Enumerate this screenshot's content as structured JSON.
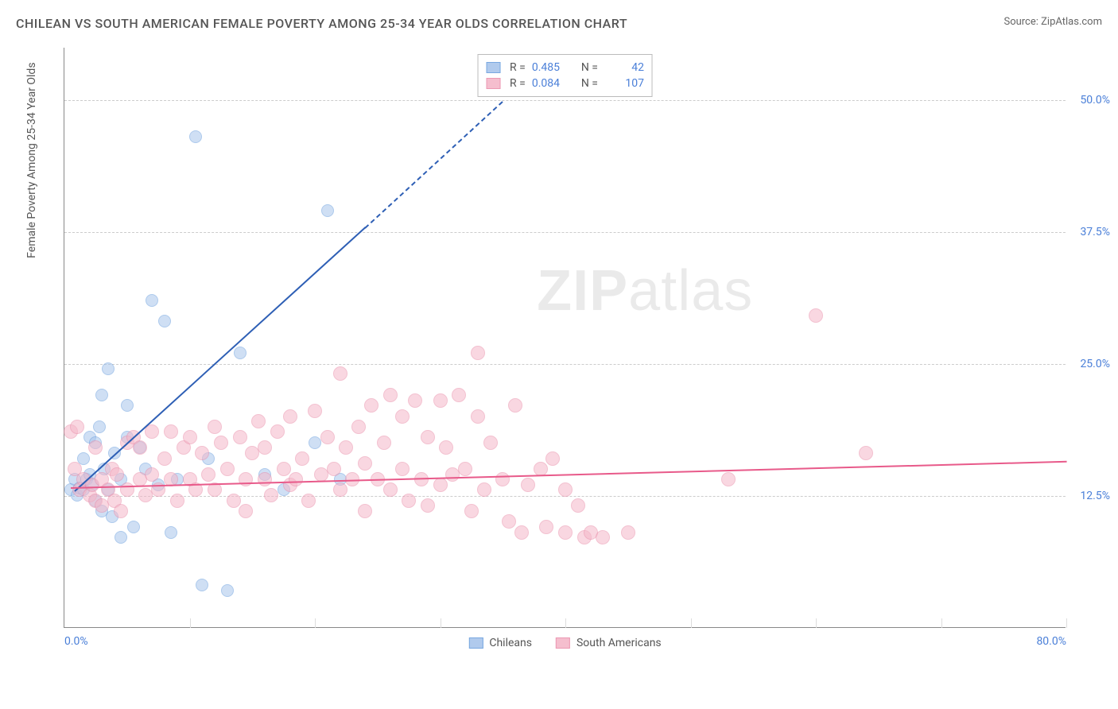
{
  "header": {
    "title": "CHILEAN VS SOUTH AMERICAN FEMALE POVERTY AMONG 25-34 YEAR OLDS CORRELATION CHART",
    "source": "Source: ZipAtlas.com"
  },
  "chart": {
    "type": "scatter",
    "ylabel": "Female Poverty Among 25-34 Year Olds",
    "watermark": "ZIPatlas",
    "xlim": [
      0,
      80
    ],
    "ylim": [
      0,
      55
    ],
    "xticks": [
      0,
      10,
      20,
      30,
      40,
      50,
      60,
      70,
      80
    ],
    "xtick_labels": {
      "0": "0.0%",
      "80": "80.0%"
    },
    "yticks": [
      12.5,
      25.0,
      37.5,
      50.0
    ],
    "ytick_labels": [
      "12.5%",
      "25.0%",
      "37.5%",
      "50.0%"
    ],
    "grid_color": "#cccccc",
    "axis_color": "#888888",
    "tick_label_color": "#4a7fd8",
    "background_color": "#ffffff",
    "series": [
      {
        "name": "Chileans",
        "fill_color": "#a8c5ec",
        "stroke_color": "#6b9fde",
        "line_color": "#2e5fb5",
        "fill_opacity": 0.55,
        "marker_radius": 8,
        "R": "0.485",
        "N": "42",
        "trend": {
          "x1": 0.8,
          "y1": 13.0,
          "x2": 24,
          "y2": 38.0,
          "dashed_x2": 35,
          "dashed_y2": 50
        },
        "points": [
          [
            0.5,
            13
          ],
          [
            0.8,
            14
          ],
          [
            1,
            12.5
          ],
          [
            1.2,
            13.2
          ],
          [
            1.5,
            13
          ],
          [
            1.5,
            16
          ],
          [
            1.8,
            14
          ],
          [
            2,
            14.5
          ],
          [
            2,
            18
          ],
          [
            2.2,
            13.5
          ],
          [
            2.5,
            12
          ],
          [
            2.5,
            17.5
          ],
          [
            2.8,
            19
          ],
          [
            3,
            22
          ],
          [
            3,
            11
          ],
          [
            3.2,
            15
          ],
          [
            3.5,
            24.5
          ],
          [
            3.5,
            13
          ],
          [
            3.8,
            10.5
          ],
          [
            4,
            16.5
          ],
          [
            4.5,
            14
          ],
          [
            4.5,
            8.5
          ],
          [
            5,
            21
          ],
          [
            5,
            18
          ],
          [
            5.5,
            9.5
          ],
          [
            6,
            17
          ],
          [
            6.5,
            15
          ],
          [
            7,
            31
          ],
          [
            7.5,
            13.5
          ],
          [
            8,
            29
          ],
          [
            8.5,
            9
          ],
          [
            9,
            14
          ],
          [
            10.5,
            46.5
          ],
          [
            11,
            4
          ],
          [
            11.5,
            16
          ],
          [
            13,
            3.5
          ],
          [
            14,
            26
          ],
          [
            16,
            14.5
          ],
          [
            17.5,
            13
          ],
          [
            20,
            17.5
          ],
          [
            21,
            39.5
          ],
          [
            22,
            14
          ]
        ]
      },
      {
        "name": "South Americans",
        "fill_color": "#f5b8c9",
        "stroke_color": "#ea8fab",
        "line_color": "#e85a8a",
        "fill_opacity": 0.55,
        "marker_radius": 9,
        "R": "0.084",
        "N": "107",
        "trend": {
          "x1": 0.5,
          "y1": 13.3,
          "x2": 80,
          "y2": 15.8
        },
        "points": [
          [
            0.5,
            18.5
          ],
          [
            0.8,
            15
          ],
          [
            1,
            19
          ],
          [
            1.2,
            13
          ],
          [
            1.5,
            14
          ],
          [
            2,
            12.5
          ],
          [
            2.2,
            13.5
          ],
          [
            2.5,
            12
          ],
          [
            2.5,
            17
          ],
          [
            3,
            14
          ],
          [
            3,
            11.5
          ],
          [
            3.5,
            13
          ],
          [
            3.8,
            15
          ],
          [
            4,
            12
          ],
          [
            4.2,
            14.5
          ],
          [
            4.5,
            11
          ],
          [
            5,
            17.5
          ],
          [
            5,
            13
          ],
          [
            5.5,
            18
          ],
          [
            6,
            17
          ],
          [
            6,
            14
          ],
          [
            6.5,
            12.5
          ],
          [
            7,
            18.5
          ],
          [
            7,
            14.5
          ],
          [
            7.5,
            13
          ],
          [
            8,
            16
          ],
          [
            8.5,
            18.5
          ],
          [
            8.5,
            14
          ],
          [
            9,
            12
          ],
          [
            9.5,
            17
          ],
          [
            10,
            14
          ],
          [
            10,
            18
          ],
          [
            10.5,
            13
          ],
          [
            11,
            16.5
          ],
          [
            11.5,
            14.5
          ],
          [
            12,
            19
          ],
          [
            12,
            13
          ],
          [
            12.5,
            17.5
          ],
          [
            13,
            15
          ],
          [
            13.5,
            12
          ],
          [
            14,
            18
          ],
          [
            14.5,
            14
          ],
          [
            14.5,
            11
          ],
          [
            15,
            16.5
          ],
          [
            15.5,
            19.5
          ],
          [
            16,
            14
          ],
          [
            16,
            17
          ],
          [
            16.5,
            12.5
          ],
          [
            17,
            18.5
          ],
          [
            17.5,
            15
          ],
          [
            18,
            13.5
          ],
          [
            18,
            20
          ],
          [
            18.5,
            14
          ],
          [
            19,
            16
          ],
          [
            19.5,
            12
          ],
          [
            20,
            20.5
          ],
          [
            20.5,
            14.5
          ],
          [
            21,
            18
          ],
          [
            21.5,
            15
          ],
          [
            22,
            13
          ],
          [
            22,
            24
          ],
          [
            22.5,
            17
          ],
          [
            23,
            14
          ],
          [
            23.5,
            19
          ],
          [
            24,
            15.5
          ],
          [
            24,
            11
          ],
          [
            24.5,
            21
          ],
          [
            25,
            14
          ],
          [
            25.5,
            17.5
          ],
          [
            26,
            13
          ],
          [
            26,
            22
          ],
          [
            27,
            20
          ],
          [
            27,
            15
          ],
          [
            27.5,
            12
          ],
          [
            28,
            21.5
          ],
          [
            28.5,
            14
          ],
          [
            29,
            18
          ],
          [
            29,
            11.5
          ],
          [
            30,
            21.5
          ],
          [
            30,
            13.5
          ],
          [
            30.5,
            17
          ],
          [
            31,
            14.5
          ],
          [
            31.5,
            22
          ],
          [
            32,
            15
          ],
          [
            32.5,
            11
          ],
          [
            33,
            20
          ],
          [
            33,
            26
          ],
          [
            33.5,
            13
          ],
          [
            34,
            17.5
          ],
          [
            35,
            14
          ],
          [
            35.5,
            10
          ],
          [
            36,
            21
          ],
          [
            36.5,
            9
          ],
          [
            37,
            13.5
          ],
          [
            38,
            15
          ],
          [
            38.5,
            9.5
          ],
          [
            39,
            16
          ],
          [
            40,
            13
          ],
          [
            40,
            9
          ],
          [
            41,
            11.5
          ],
          [
            41.5,
            8.5
          ],
          [
            42,
            9
          ],
          [
            43,
            8.5
          ],
          [
            45,
            9
          ],
          [
            53,
            14
          ],
          [
            60,
            29.5
          ],
          [
            64,
            16.5
          ]
        ]
      }
    ],
    "legend": {
      "stat_labels": {
        "R": "R =",
        "N": "N ="
      }
    }
  }
}
